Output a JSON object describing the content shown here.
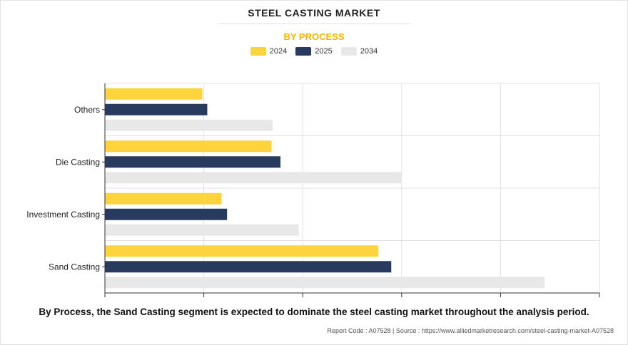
{
  "title": "STEEL CASTING MARKET",
  "subtitle": "BY PROCESS",
  "colors": {
    "accent": "#f4b400",
    "y2024": "#fdd43c",
    "y2025": "#283a5e",
    "y2034": "#e8e8e8"
  },
  "legend": [
    {
      "label": "2024",
      "color": "#fdd43c"
    },
    {
      "label": "2025",
      "color": "#283a5e"
    },
    {
      "label": "2034",
      "color": "#e8e8e8"
    }
  ],
  "chart_data": {
    "type": "bar",
    "orientation": "horizontal",
    "title": "STEEL CASTING MARKET",
    "subtitle": "BY PROCESS",
    "categories": [
      "Others",
      "Die Casting",
      "Investment Casting",
      "Sand Casting"
    ],
    "series": [
      {
        "name": "2024",
        "values": [
          1.97,
          3.37,
          2.36,
          5.53
        ]
      },
      {
        "name": "2025",
        "values": [
          2.07,
          3.55,
          2.47,
          5.79
        ]
      },
      {
        "name": "2034",
        "values": [
          3.39,
          6.0,
          3.92,
          8.89
        ]
      }
    ],
    "xlim": [
      0,
      10
    ],
    "grid": true,
    "legend_position": "top-center"
  },
  "footer": {
    "caption": "By Process, the Sand Casting segment is expected to dominate the steel casting market throughout the analysis period.",
    "source": "Report Code : A07528  |  Source : https://www.alliedmarketresearch.com/steel-casting-market-A07528"
  }
}
